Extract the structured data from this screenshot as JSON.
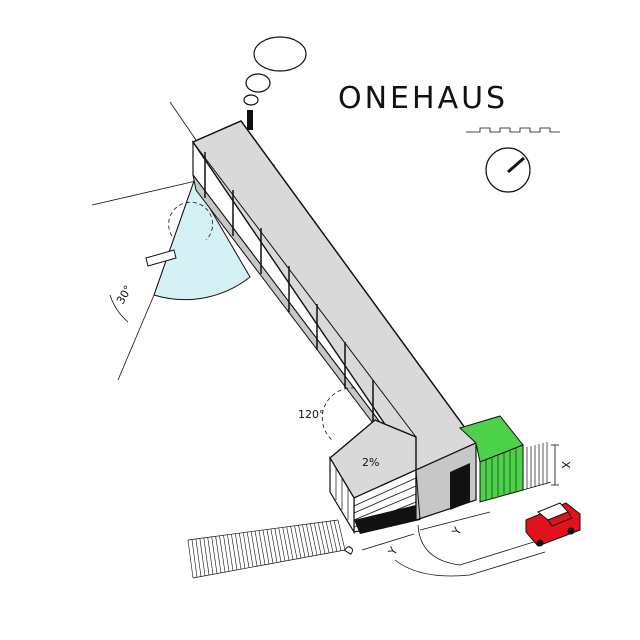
{
  "title": "ONEHAUS",
  "labels": {
    "angle_120": "120°",
    "slope": "2%",
    "angle_30": "30°",
    "dim_x": "X",
    "dim_y1": "Y",
    "dim_y2": "Y",
    "dim_d": "D"
  },
  "colors": {
    "roof": "#d9d9d9",
    "wall": "#c7c7c7",
    "sky_wedge": "#d6f1f6",
    "garden": "#4dd14b",
    "car": "#e3111c",
    "outline": "#111111"
  },
  "icons": [
    "thought-bubble-icon",
    "clock-icon",
    "wave-divider-icon",
    "chimney-icon",
    "car-icon"
  ]
}
